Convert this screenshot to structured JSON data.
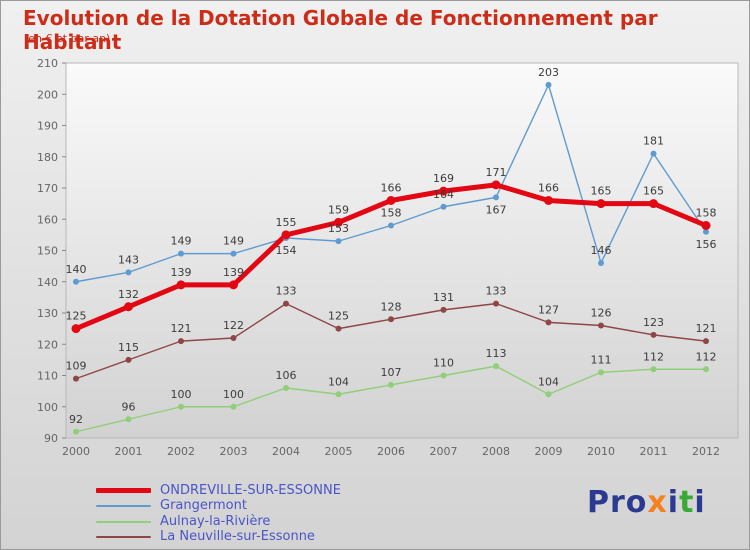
{
  "title": "Evolution de la Dotation Globale de Fonctionnement par Habitant",
  "subtitle": "(en € et par an)",
  "colors": {
    "title": "#cc2d18",
    "subtitle": "#cc2d18",
    "legend_text": "#4a55c8",
    "value_label": "#3c3c3c",
    "axis_label": "#666666"
  },
  "chart_data": {
    "type": "line",
    "x": [
      2000,
      2001,
      2002,
      2003,
      2004,
      2005,
      2006,
      2007,
      2008,
      2009,
      2010,
      2011,
      2012
    ],
    "ylim": [
      90,
      210
    ],
    "yticks": [
      90,
      100,
      110,
      120,
      130,
      140,
      150,
      160,
      170,
      180,
      190,
      200,
      210
    ],
    "grid": false,
    "legend_position": "bottom-left",
    "series": [
      {
        "name": "ONDREVILLE-SUR-ESSONNE",
        "color": "#e30613",
        "width": 5,
        "marker_r": 4.5,
        "values": [
          125,
          132,
          139,
          139,
          155,
          159,
          166,
          169,
          171,
          166,
          165,
          165,
          158
        ]
      },
      {
        "name": "Grangermont",
        "color": "#5f9bd0",
        "width": 1.4,
        "marker_r": 3,
        "values": [
          140,
          143,
          149,
          149,
          154,
          153,
          158,
          164,
          167,
          203,
          146,
          181,
          156
        ],
        "label_dy": [
          -9,
          -9,
          -9,
          -9,
          16,
          -9,
          -9,
          -9,
          16,
          -9,
          -9,
          -9,
          16
        ]
      },
      {
        "name": "Aulnay-la-Rivière",
        "color": "#90cf78",
        "width": 1.4,
        "marker_r": 3,
        "values": [
          92,
          96,
          100,
          100,
          106,
          104,
          107,
          110,
          113,
          104,
          111,
          112,
          112
        ]
      },
      {
        "name": "La Neuville-sur-Essonne",
        "color": "#8e4646",
        "width": 1.4,
        "marker_r": 3,
        "values": [
          109,
          115,
          121,
          122,
          133,
          125,
          128,
          131,
          133,
          127,
          126,
          123,
          121
        ]
      }
    ]
  },
  "logo": {
    "letters": [
      {
        "ch": "Pro",
        "color": "#2b3990"
      },
      {
        "ch": "x",
        "color": "#f58220"
      },
      {
        "ch": "i",
        "color": "#2b3990"
      },
      {
        "ch": "t",
        "color": "#3aaa35"
      },
      {
        "ch": "i",
        "color": "#2b3990"
      }
    ]
  }
}
